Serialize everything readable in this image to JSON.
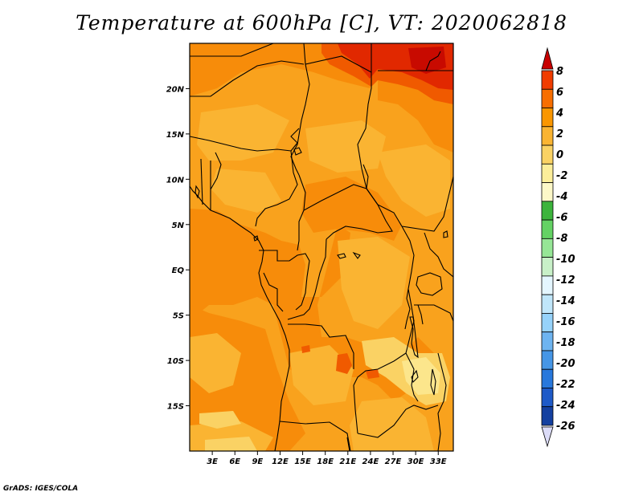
{
  "title": "Temperature at 600hPa [C], VT: 2020062818",
  "credit": "GrADS: IGES/COLA",
  "map": {
    "lon_range": [
      0,
      35
    ],
    "lat_range": [
      -20,
      25
    ],
    "lat_ticks": [
      {
        "value": 20,
        "label": "20N"
      },
      {
        "value": 15,
        "label": "15N"
      },
      {
        "value": 10,
        "label": "10N"
      },
      {
        "value": 5,
        "label": "5N"
      },
      {
        "value": 0,
        "label": "EQ"
      },
      {
        "value": -5,
        "label": "5S"
      },
      {
        "value": -10,
        "label": "10S"
      },
      {
        "value": -15,
        "label": "15S"
      }
    ],
    "lon_ticks": [
      {
        "value": 3,
        "label": "3E"
      },
      {
        "value": 6,
        "label": "6E"
      },
      {
        "value": 9,
        "label": "9E"
      },
      {
        "value": 12,
        "label": "12E"
      },
      {
        "value": 15,
        "label": "15E"
      },
      {
        "value": 18,
        "label": "18E"
      },
      {
        "value": 21,
        "label": "21E"
      },
      {
        "value": 24,
        "label": "24E"
      },
      {
        "value": 27,
        "label": "27E"
      },
      {
        "value": 30,
        "label": "30E"
      },
      {
        "value": 33,
        "label": "33E"
      }
    ]
  },
  "colorbar": {
    "labels": [
      "8",
      "6",
      "4",
      "2",
      "0",
      "-2",
      "-4",
      "-6",
      "-8",
      "-10",
      "-12",
      "-14",
      "-16",
      "-18",
      "-20",
      "-22",
      "-24",
      "-26"
    ],
    "colors": [
      "#e00000",
      "#f03c00",
      "#f86e00",
      "#fa9600",
      "#fab432",
      "#fad264",
      "#fcee9a",
      "#fcf8c8",
      "#3cb43c",
      "#64d264",
      "#96e696",
      "#c8f0c8",
      "#e4f6ff",
      "#c0e6fa",
      "#96d2fa",
      "#6eb4f0",
      "#4696e6",
      "#2878dc",
      "#1e5ac8",
      "#1440a0",
      "#0a1e6e"
    ],
    "top_arrow_color": "#c80000",
    "bottom_arrow_color": "#dcdcf8"
  },
  "field_colors": {
    "base": "#f9a21d",
    "warm": "#f78c0a",
    "hot": "#f05a00",
    "hotter": "#e12800",
    "hottest": "#c80a00",
    "cool": "#fab432",
    "cooler": "#fad264",
    "coolest": "#fce68c"
  }
}
